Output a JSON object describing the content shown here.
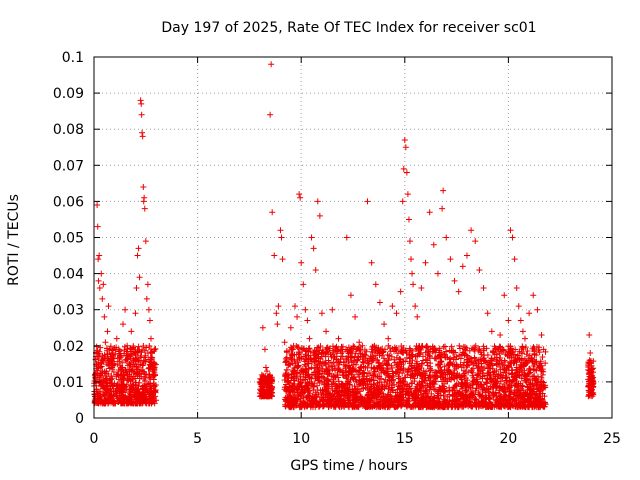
{
  "chart_data": {
    "type": "scatter",
    "title": "Day 197 of 2025, Rate Of TEC Index for receiver sc01",
    "xlabel": "GPS time / hours",
    "ylabel": "ROTI / TECUs",
    "xlim": [
      0,
      25
    ],
    "ylim": [
      0,
      0.1
    ],
    "x_ticks": [
      "0",
      "5",
      "10",
      "15",
      "20",
      "25"
    ],
    "y_ticks": [
      "0",
      "0.01",
      "0.02",
      "0.03",
      "0.04",
      "0.05",
      "0.06",
      "0.07",
      "0.08",
      "0.09",
      "0.1"
    ],
    "grid": true,
    "marker": "+",
    "color": "#ee0000",
    "series": [
      {
        "points": [
          [
            0.05,
            0.012
          ],
          [
            0.1,
            0.017
          ],
          [
            0.12,
            0.008
          ],
          [
            0.15,
            0.059
          ],
          [
            0.18,
            0.053
          ],
          [
            0.2,
            0.044
          ],
          [
            0.22,
            0.038
          ],
          [
            0.25,
            0.045
          ],
          [
            0.28,
            0.036
          ],
          [
            0.3,
            0.014
          ],
          [
            0.35,
            0.04
          ],
          [
            0.4,
            0.033
          ],
          [
            0.45,
            0.037
          ],
          [
            0.5,
            0.028
          ],
          [
            0.55,
            0.021
          ],
          [
            0.6,
            0.011
          ],
          [
            0.65,
            0.024
          ],
          [
            0.7,
            0.031
          ],
          [
            0.8,
            0.017
          ],
          [
            0.9,
            0.009
          ],
          [
            1.0,
            0.015
          ],
          [
            1.1,
            0.022
          ],
          [
            1.2,
            0.019
          ],
          [
            1.3,
            0.013
          ],
          [
            1.4,
            0.026
          ],
          [
            1.5,
            0.03
          ],
          [
            1.6,
            0.02
          ],
          [
            1.7,
            0.012
          ],
          [
            1.8,
            0.024
          ],
          [
            1.9,
            0.016
          ],
          [
            2.0,
            0.029
          ],
          [
            2.05,
            0.036
          ],
          [
            2.1,
            0.045
          ],
          [
            2.15,
            0.047
          ],
          [
            2.2,
            0.039
          ],
          [
            2.25,
            0.088
          ],
          [
            2.28,
            0.087
          ],
          [
            2.3,
            0.084
          ],
          [
            2.32,
            0.079
          ],
          [
            2.35,
            0.078
          ],
          [
            2.38,
            0.064
          ],
          [
            2.4,
            0.06
          ],
          [
            2.42,
            0.061
          ],
          [
            2.45,
            0.058
          ],
          [
            2.5,
            0.049
          ],
          [
            2.55,
            0.033
          ],
          [
            2.6,
            0.037
          ],
          [
            2.65,
            0.03
          ],
          [
            2.7,
            0.027
          ],
          [
            2.75,
            0.022
          ],
          [
            2.8,
            0.018
          ],
          [
            2.85,
            0.012
          ],
          [
            2.9,
            0.009
          ],
          [
            2.95,
            0.006
          ],
          [
            8.0,
            0.01
          ],
          [
            8.1,
            0.006
          ],
          [
            8.15,
            0.025
          ],
          [
            8.25,
            0.019
          ],
          [
            8.3,
            0.014
          ],
          [
            8.35,
            0.013
          ],
          [
            8.5,
            0.084
          ],
          [
            8.55,
            0.098
          ],
          [
            8.6,
            0.057
          ],
          [
            8.7,
            0.045
          ],
          [
            8.8,
            0.029
          ],
          [
            8.85,
            0.026
          ],
          [
            8.9,
            0.031
          ],
          [
            9.0,
            0.052
          ],
          [
            9.05,
            0.05
          ],
          [
            9.1,
            0.044
          ],
          [
            9.2,
            0.021
          ],
          [
            9.3,
            0.016
          ],
          [
            9.4,
            0.012
          ],
          [
            9.5,
            0.025
          ],
          [
            9.6,
            0.019
          ],
          [
            9.7,
            0.031
          ],
          [
            9.8,
            0.028
          ],
          [
            9.9,
            0.062
          ],
          [
            9.95,
            0.061
          ],
          [
            10.0,
            0.043
          ],
          [
            10.1,
            0.037
          ],
          [
            10.2,
            0.03
          ],
          [
            10.3,
            0.027
          ],
          [
            10.4,
            0.022
          ],
          [
            10.5,
            0.05
          ],
          [
            10.6,
            0.047
          ],
          [
            10.7,
            0.041
          ],
          [
            10.8,
            0.06
          ],
          [
            10.9,
            0.056
          ],
          [
            11.0,
            0.029
          ],
          [
            11.2,
            0.024
          ],
          [
            11.5,
            0.03
          ],
          [
            11.8,
            0.022
          ],
          [
            12.0,
            0.019
          ],
          [
            12.2,
            0.05
          ],
          [
            12.4,
            0.034
          ],
          [
            12.6,
            0.028
          ],
          [
            12.8,
            0.021
          ],
          [
            13.0,
            0.017
          ],
          [
            13.2,
            0.06
          ],
          [
            13.4,
            0.043
          ],
          [
            13.6,
            0.037
          ],
          [
            13.8,
            0.032
          ],
          [
            14.0,
            0.026
          ],
          [
            14.2,
            0.022
          ],
          [
            14.4,
            0.031
          ],
          [
            14.6,
            0.029
          ],
          [
            14.8,
            0.035
          ],
          [
            14.9,
            0.06
          ],
          [
            14.95,
            0.069
          ],
          [
            15.0,
            0.077
          ],
          [
            15.05,
            0.075
          ],
          [
            15.1,
            0.068
          ],
          [
            15.15,
            0.062
          ],
          [
            15.2,
            0.055
          ],
          [
            15.25,
            0.049
          ],
          [
            15.3,
            0.044
          ],
          [
            15.35,
            0.04
          ],
          [
            15.4,
            0.037
          ],
          [
            15.5,
            0.031
          ],
          [
            15.6,
            0.028
          ],
          [
            15.8,
            0.036
          ],
          [
            16.0,
            0.043
          ],
          [
            16.2,
            0.057
          ],
          [
            16.4,
            0.048
          ],
          [
            16.6,
            0.04
          ],
          [
            16.8,
            0.058
          ],
          [
            16.85,
            0.063
          ],
          [
            17.0,
            0.05
          ],
          [
            17.2,
            0.044
          ],
          [
            17.4,
            0.038
          ],
          [
            17.6,
            0.035
          ],
          [
            17.8,
            0.042
          ],
          [
            18.0,
            0.045
          ],
          [
            18.2,
            0.052
          ],
          [
            18.4,
            0.049
          ],
          [
            18.6,
            0.041
          ],
          [
            18.8,
            0.036
          ],
          [
            19.0,
            0.029
          ],
          [
            19.2,
            0.024
          ],
          [
            19.4,
            0.019
          ],
          [
            19.6,
            0.023
          ],
          [
            19.8,
            0.034
          ],
          [
            20.0,
            0.027
          ],
          [
            20.1,
            0.052
          ],
          [
            20.2,
            0.05
          ],
          [
            20.3,
            0.044
          ],
          [
            20.4,
            0.036
          ],
          [
            20.5,
            0.031
          ],
          [
            20.6,
            0.027
          ],
          [
            20.7,
            0.024
          ],
          [
            20.8,
            0.022
          ],
          [
            21.0,
            0.029
          ],
          [
            21.2,
            0.034
          ],
          [
            21.4,
            0.03
          ],
          [
            21.6,
            0.023
          ],
          [
            21.7,
            0.019
          ],
          [
            23.9,
            0.023
          ],
          [
            23.95,
            0.018
          ],
          [
            24.0,
            0.013
          ],
          [
            24.02,
            0.01
          ],
          [
            24.05,
            0.007
          ],
          [
            23.92,
            0.016
          ],
          [
            23.98,
            0.009
          ]
        ]
      }
    ],
    "dense_bands": [
      {
        "x": [
          0.0,
          3.0
        ],
        "y": [
          0.004,
          0.02
        ]
      },
      {
        "x": [
          8.0,
          8.6
        ],
        "y": [
          0.006,
          0.012
        ]
      },
      {
        "x": [
          9.2,
          21.8
        ],
        "y": [
          0.003,
          0.02
        ]
      },
      {
        "x": [
          23.85,
          24.1
        ],
        "y": [
          0.006,
          0.016
        ]
      }
    ]
  }
}
